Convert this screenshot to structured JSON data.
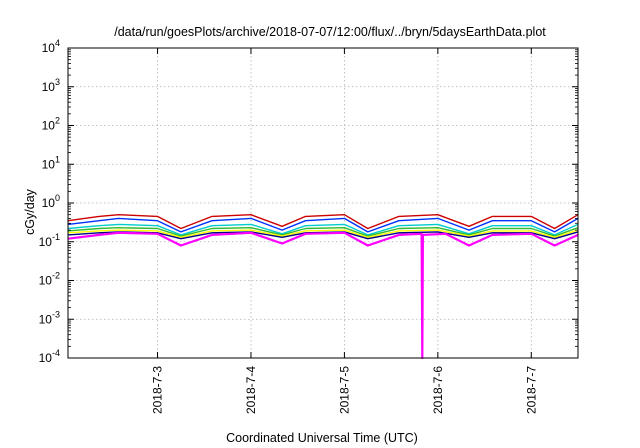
{
  "chart_data": {
    "type": "line",
    "title": "/data/run/goesPlots/archive/2018-07-07/12:00/flux/../bryn/5daysEarthData.plot",
    "xlabel": "Coordinated Universal Time (UTC)",
    "ylabel": "cGy/day",
    "yscale": "log",
    "ylim": [
      0.0001,
      10000
    ],
    "y_ticks": [
      {
        "base": "10",
        "exp": "-4",
        "value": 0.0001
      },
      {
        "base": "10",
        "exp": "-3",
        "value": 0.001
      },
      {
        "base": "10",
        "exp": "-2",
        "value": 0.01
      },
      {
        "base": "10",
        "exp": "-1",
        "value": 0.1
      },
      {
        "base": "10",
        "exp": "0",
        "value": 1
      },
      {
        "base": "10",
        "exp": "1",
        "value": 10
      },
      {
        "base": "10",
        "exp": "2",
        "value": 100
      },
      {
        "base": "10",
        "exp": "3",
        "value": 1000
      },
      {
        "base": "10",
        "exp": "4",
        "value": 10000
      }
    ],
    "xlim": [
      "2018-07-02T01:00",
      "2018-07-07T12:00"
    ],
    "x_ticks": [
      {
        "label": "2018-7-3",
        "value": "2018-07-03T00:00"
      },
      {
        "label": "2018-7-4",
        "value": "2018-07-04T00:00"
      },
      {
        "label": "2018-7-5",
        "value": "2018-07-05T00:00"
      },
      {
        "label": "2018-7-6",
        "value": "2018-07-06T00:00"
      },
      {
        "label": "2018-7-7",
        "value": "2018-07-07T00:00"
      }
    ],
    "grid": true,
    "legend": "none",
    "series_colors": [
      "#ff00ff",
      "#cc0000",
      "#0033ff",
      "#00cccc",
      "#33bb33",
      "#ffff00",
      "#000088"
    ],
    "series": [
      {
        "color": "#ff00ff",
        "x": [
          "2018-07-02T01:00",
          "2018-07-02T09:00",
          "2018-07-02T14:00",
          "2018-07-03T00:00",
          "2018-07-03T06:00",
          "2018-07-03T14:00",
          "2018-07-04T00:00",
          "2018-07-04T08:00",
          "2018-07-04T14:00",
          "2018-07-05T00:00",
          "2018-07-05T06:00",
          "2018-07-05T14:00",
          "2018-07-05T19:50",
          "2018-07-05T20:00",
          "2018-07-05T20:10",
          "2018-07-06T02:00",
          "2018-07-06T08:00",
          "2018-07-06T14:00",
          "2018-07-07T00:00",
          "2018-07-07T06:00",
          "2018-07-07T12:00"
        ],
        "y": [
          0.12,
          0.15,
          0.17,
          0.16,
          0.08,
          0.15,
          0.17,
          0.09,
          0.16,
          0.17,
          0.08,
          0.15,
          0.16,
          0.0001,
          0.15,
          0.16,
          0.08,
          0.15,
          0.16,
          0.08,
          0.15
        ]
      },
      {
        "color": "#cc0000",
        "x": [
          "2018-07-02T01:00",
          "2018-07-02T09:00",
          "2018-07-02T14:00",
          "2018-07-03T00:00",
          "2018-07-03T06:00",
          "2018-07-03T14:00",
          "2018-07-04T00:00",
          "2018-07-04T08:00",
          "2018-07-04T14:00",
          "2018-07-05T00:00",
          "2018-07-05T06:00",
          "2018-07-05T14:00",
          "2018-07-06T00:00",
          "2018-07-06T08:00",
          "2018-07-06T14:00",
          "2018-07-07T00:00",
          "2018-07-07T06:00",
          "2018-07-07T12:00"
        ],
        "y": [
          0.35,
          0.45,
          0.5,
          0.45,
          0.22,
          0.45,
          0.5,
          0.25,
          0.45,
          0.5,
          0.22,
          0.45,
          0.5,
          0.25,
          0.45,
          0.45,
          0.22,
          0.5
        ]
      },
      {
        "color": "#0033ff",
        "x": [
          "2018-07-02T01:00",
          "2018-07-02T09:00",
          "2018-07-02T14:00",
          "2018-07-03T00:00",
          "2018-07-03T06:00",
          "2018-07-03T14:00",
          "2018-07-04T00:00",
          "2018-07-04T08:00",
          "2018-07-04T14:00",
          "2018-07-05T00:00",
          "2018-07-05T06:00",
          "2018-07-05T14:00",
          "2018-07-06T00:00",
          "2018-07-06T08:00",
          "2018-07-06T14:00",
          "2018-07-07T00:00",
          "2018-07-07T06:00",
          "2018-07-07T12:00"
        ],
        "y": [
          0.28,
          0.35,
          0.4,
          0.35,
          0.18,
          0.35,
          0.4,
          0.2,
          0.35,
          0.4,
          0.18,
          0.35,
          0.4,
          0.2,
          0.35,
          0.35,
          0.18,
          0.4
        ]
      },
      {
        "color": "#00cccc",
        "x": [
          "2018-07-02T01:00",
          "2018-07-02T09:00",
          "2018-07-02T14:00",
          "2018-07-03T00:00",
          "2018-07-03T06:00",
          "2018-07-03T14:00",
          "2018-07-04T00:00",
          "2018-07-04T08:00",
          "2018-07-04T14:00",
          "2018-07-05T00:00",
          "2018-07-05T06:00",
          "2018-07-05T14:00",
          "2018-07-06T00:00",
          "2018-07-06T08:00",
          "2018-07-06T14:00",
          "2018-07-07T00:00",
          "2018-07-07T06:00",
          "2018-07-07T12:00"
        ],
        "y": [
          0.22,
          0.26,
          0.28,
          0.26,
          0.15,
          0.26,
          0.28,
          0.16,
          0.26,
          0.28,
          0.15,
          0.26,
          0.28,
          0.16,
          0.26,
          0.26,
          0.15,
          0.28
        ]
      },
      {
        "color": "#33bb33",
        "x": [
          "2018-07-02T01:00",
          "2018-07-02T09:00",
          "2018-07-02T14:00",
          "2018-07-03T00:00",
          "2018-07-03T06:00",
          "2018-07-03T14:00",
          "2018-07-04T00:00",
          "2018-07-04T08:00",
          "2018-07-04T14:00",
          "2018-07-05T00:00",
          "2018-07-05T06:00",
          "2018-07-05T14:00",
          "2018-07-06T00:00",
          "2018-07-06T08:00",
          "2018-07-06T14:00",
          "2018-07-07T00:00",
          "2018-07-07T06:00",
          "2018-07-07T12:00"
        ],
        "y": [
          0.19,
          0.22,
          0.23,
          0.22,
          0.14,
          0.22,
          0.23,
          0.15,
          0.22,
          0.23,
          0.14,
          0.22,
          0.23,
          0.15,
          0.22,
          0.22,
          0.14,
          0.23
        ]
      },
      {
        "color": "#ffff00",
        "x": [
          "2018-07-02T01:00",
          "2018-07-02T09:00",
          "2018-07-02T14:00",
          "2018-07-03T00:00",
          "2018-07-03T06:00",
          "2018-07-03T14:00",
          "2018-07-04T00:00",
          "2018-07-04T08:00",
          "2018-07-04T14:00",
          "2018-07-05T00:00",
          "2018-07-05T06:00",
          "2018-07-05T14:00",
          "2018-07-06T00:00",
          "2018-07-06T08:00",
          "2018-07-06T14:00",
          "2018-07-07T00:00",
          "2018-07-07T06:00",
          "2018-07-07T12:00"
        ],
        "y": [
          0.17,
          0.19,
          0.2,
          0.19,
          0.13,
          0.19,
          0.2,
          0.14,
          0.19,
          0.2,
          0.13,
          0.19,
          0.2,
          0.14,
          0.19,
          0.19,
          0.13,
          0.2
        ]
      },
      {
        "color": "#000088",
        "x": [
          "2018-07-02T01:00",
          "2018-07-02T09:00",
          "2018-07-02T14:00",
          "2018-07-03T00:00",
          "2018-07-03T06:00",
          "2018-07-03T14:00",
          "2018-07-04T00:00",
          "2018-07-04T08:00",
          "2018-07-04T14:00",
          "2018-07-05T00:00",
          "2018-07-05T06:00",
          "2018-07-05T14:00",
          "2018-07-06T00:00",
          "2018-07-06T08:00",
          "2018-07-06T14:00",
          "2018-07-07T00:00",
          "2018-07-07T06:00",
          "2018-07-07T12:00"
        ],
        "y": [
          0.15,
          0.17,
          0.18,
          0.17,
          0.12,
          0.17,
          0.18,
          0.13,
          0.17,
          0.18,
          0.12,
          0.17,
          0.18,
          0.13,
          0.17,
          0.17,
          0.12,
          0.18
        ]
      }
    ]
  }
}
